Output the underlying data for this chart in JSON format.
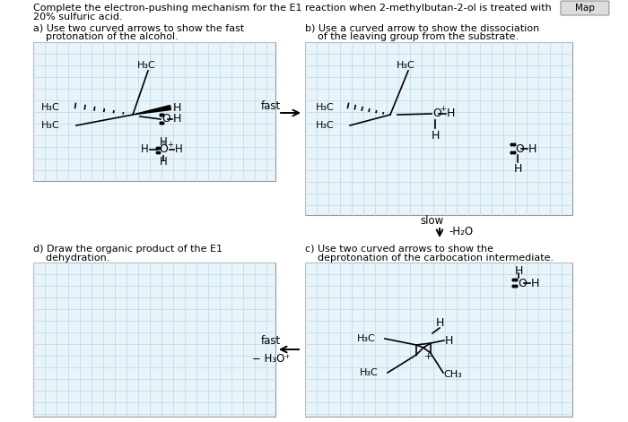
{
  "background_color": "#ffffff",
  "grid_color": "#b8d8ea",
  "box_bg": "#e8f4fa",
  "box_edge": "#aaaaaa",
  "title1": "Complete the electron-pushing mechanism for the E1 reaction when 2-methylbutan-2-ol is treated with",
  "title2": "20% sulfuric acid.",
  "map_label": "Map",
  "sec_a": "a) Use two curved arrows to show the fast",
  "sec_a2": "    protonation of the alcohol.",
  "sec_b": "b) Use a curved arrow to show the dissociation",
  "sec_b2": "    of the leaving group from the substrate.",
  "sec_c": "c) Use two curved arrows to show the",
  "sec_c2": "    deprotonation of the carbocation intermediate.",
  "sec_d": "d) Draw the organic product of the E1",
  "sec_d2": "    dehydration.",
  "fast1": "fast",
  "slow1": "slow",
  "minus_h2o": "-H₂O",
  "fast2": "fast",
  "minus_h3o": "− H₃O⁺"
}
